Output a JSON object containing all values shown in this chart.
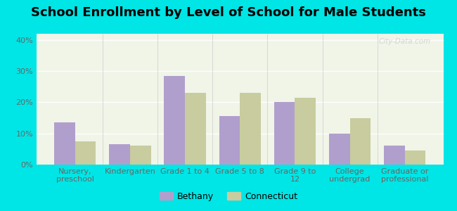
{
  "title": "School Enrollment by Level of School for Male Students",
  "categories": [
    "Nursery,\npreschool",
    "Kindergarten",
    "Grade 1 to 4",
    "Grade 5 to 8",
    "Grade 9 to\n12",
    "College\nundergrad",
    "Graduate or\nprofessional"
  ],
  "bethany": [
    13.5,
    6.5,
    28.5,
    15.5,
    20.0,
    10.0,
    6.0
  ],
  "connecticut": [
    7.5,
    6.0,
    23.0,
    23.0,
    21.5,
    15.0,
    4.5
  ],
  "bethany_color": "#b09fcc",
  "connecticut_color": "#c8cc9f",
  "background_outer": "#00e5e5",
  "background_inner": "#f0f5e8",
  "ylim": [
    0,
    42
  ],
  "yticks": [
    0,
    10,
    20,
    30,
    40
  ],
  "ytick_labels": [
    "0%",
    "10%",
    "20%",
    "30%",
    "40%"
  ],
  "bar_width": 0.38,
  "legend_labels": [
    "Bethany",
    "Connecticut"
  ],
  "watermark": "City-Data.com",
  "title_fontsize": 13,
  "axis_fontsize": 8,
  "legend_fontsize": 9
}
